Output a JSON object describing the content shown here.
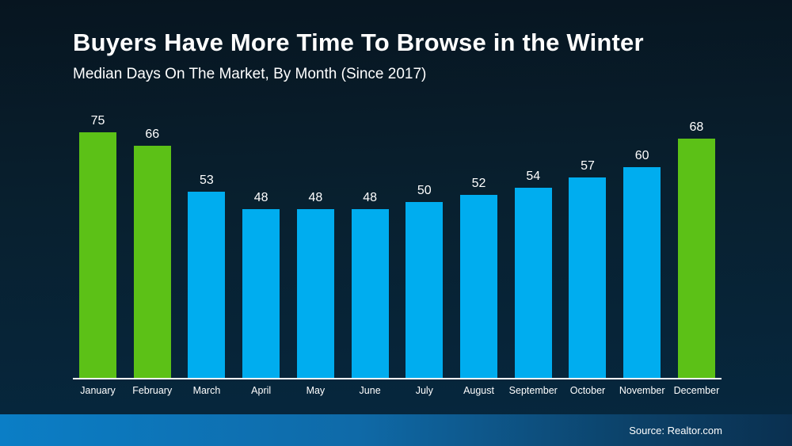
{
  "header": {
    "title": "Buyers Have More Time To Browse in the Winter",
    "subtitle": "Median Days On The Market, By Month (Since 2017)"
  },
  "footer": {
    "source": "Source: Realtor.com"
  },
  "chart_data": {
    "type": "bar",
    "title": "Buyers Have More Time To Browse in the Winter",
    "subtitle": "Median Days On The Market, By Month (Since 2017)",
    "categories": [
      "January",
      "February",
      "March",
      "April",
      "May",
      "June",
      "July",
      "August",
      "September",
      "October",
      "November",
      "December"
    ],
    "values": [
      75,
      66,
      53,
      48,
      48,
      48,
      50,
      52,
      54,
      57,
      60,
      68
    ],
    "bar_colors": [
      "highlight",
      "highlight",
      "default",
      "default",
      "default",
      "default",
      "default",
      "default",
      "default",
      "default",
      "default",
      "highlight"
    ],
    "colors": {
      "default": "#00ADEF",
      "highlight": "#5CC117"
    },
    "ylim": [
      0,
      75
    ],
    "value_labels_shown": true,
    "grid": false,
    "legend": "none",
    "background_top": "#071520",
    "background_bottom": "#062840",
    "axis_line_color": "#ffffff",
    "source": "Source: Realtor.com"
  }
}
